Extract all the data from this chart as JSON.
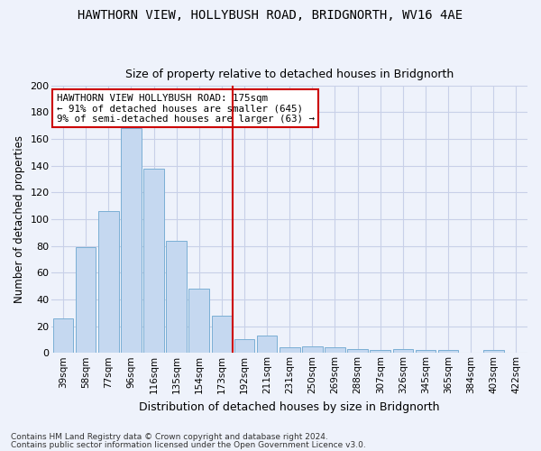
{
  "title": "HAWTHORN VIEW, HOLLYBUSH ROAD, BRIDGNORTH, WV16 4AE",
  "subtitle": "Size of property relative to detached houses in Bridgnorth",
  "xlabel": "Distribution of detached houses by size in Bridgnorth",
  "ylabel": "Number of detached properties",
  "categories": [
    "39sqm",
    "58sqm",
    "77sqm",
    "96sqm",
    "116sqm",
    "135sqm",
    "154sqm",
    "173sqm",
    "192sqm",
    "211sqm",
    "231sqm",
    "250sqm",
    "269sqm",
    "288sqm",
    "307sqm",
    "326sqm",
    "345sqm",
    "365sqm",
    "384sqm",
    "403sqm",
    "422sqm"
  ],
  "values": [
    26,
    79,
    106,
    168,
    138,
    84,
    48,
    28,
    10,
    13,
    4,
    5,
    4,
    3,
    2,
    3,
    2,
    2,
    0,
    2,
    0
  ],
  "bar_color": "#c5d8f0",
  "bar_edge_color": "#7bafd4",
  "vline_index": 7.5,
  "vline_color": "#cc0000",
  "bg_color": "#eef2fb",
  "grid_color": "#c8d0e8",
  "annotation_text": "HAWTHORN VIEW HOLLYBUSH ROAD: 175sqm\n← 91% of detached houses are smaller (645)\n9% of semi-detached houses are larger (63) →",
  "annotation_box_color": "#ffffff",
  "annotation_box_edge": "#cc0000",
  "footer1": "Contains HM Land Registry data © Crown copyright and database right 2024.",
  "footer2": "Contains public sector information licensed under the Open Government Licence v3.0.",
  "ylim": [
    0,
    200
  ],
  "yticks": [
    0,
    20,
    40,
    60,
    80,
    100,
    120,
    140,
    160,
    180,
    200
  ]
}
